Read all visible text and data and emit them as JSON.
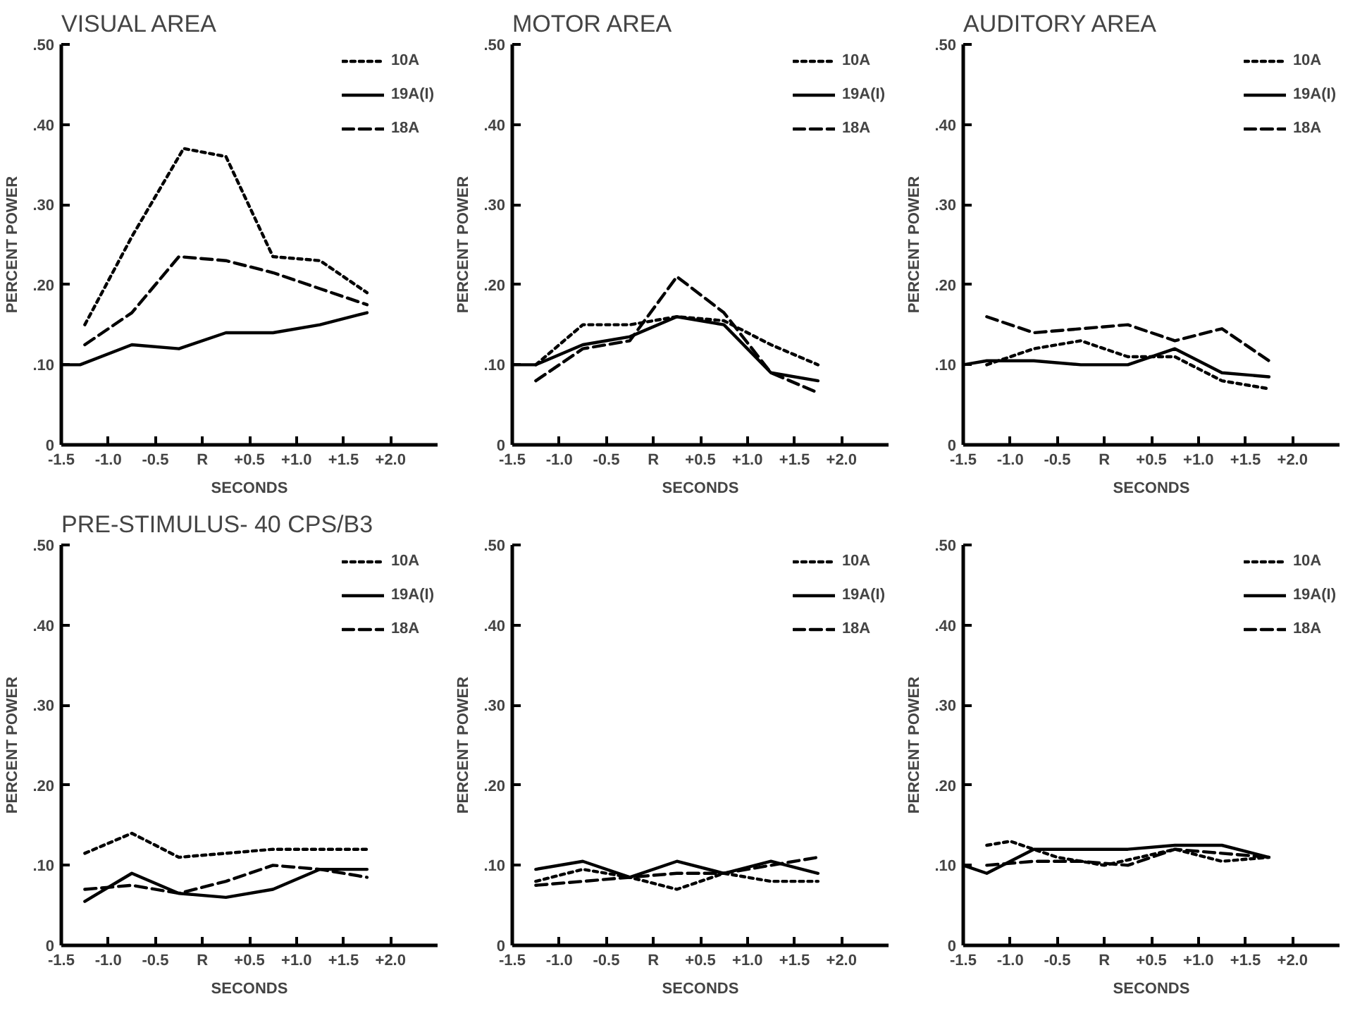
{
  "chart_data": [
    {
      "type": "line",
      "title": "VISUAL AREA",
      "xlabel": "SECONDS",
      "ylabel": "PERCENT POWER",
      "xlim": [
        -1.5,
        2.5
      ],
      "ylim": [
        0,
        0.5
      ],
      "xticks": [
        {
          "value": -1.5,
          "label": "-1.5"
        },
        {
          "value": -1.0,
          "label": "-1.0"
        },
        {
          "value": -0.5,
          "label": "-0.5"
        },
        {
          "value": 0,
          "label": "R"
        },
        {
          "value": 0.5,
          "label": "+0.5"
        },
        {
          "value": 1.0,
          "label": "+1.0"
        },
        {
          "value": 1.5,
          "label": "+1.5"
        },
        {
          "value": 2.0,
          "label": "+2.0"
        }
      ],
      "yticks": [
        {
          "value": 0,
          "label": "0"
        },
        {
          "value": 0.1,
          "label": ".10"
        },
        {
          "value": 0.2,
          "label": ".20"
        },
        {
          "value": 0.3,
          "label": ".30"
        },
        {
          "value": 0.4,
          "label": ".40"
        },
        {
          "value": 0.5,
          "label": ".50"
        }
      ],
      "grid": false,
      "legend": "top right",
      "series": [
        {
          "name": "10A",
          "color": "#000000",
          "line_style": "dotted",
          "x": [
            -1.25,
            -0.75,
            -0.2,
            0.25,
            0.75,
            1.25,
            1.75
          ],
          "values": [
            0.15,
            0.26,
            0.37,
            0.36,
            0.235,
            0.23,
            0.19
          ]
        },
        {
          "name": "19A(I)",
          "color": "#000000",
          "line_style": "solid",
          "x": [
            -1.5,
            -1.3,
            -0.75,
            -0.25,
            0.25,
            0.75,
            1.25,
            1.75
          ],
          "values": [
            0.1,
            0.1,
            0.125,
            0.12,
            0.14,
            0.14,
            0.15,
            0.165
          ]
        },
        {
          "name": "18A",
          "color": "#000000",
          "line_style": "dashed",
          "x": [
            -1.25,
            -0.75,
            -0.25,
            0.25,
            0.75,
            1.25,
            1.75
          ],
          "values": [
            0.125,
            0.165,
            0.235,
            0.23,
            0.215,
            0.195,
            0.175
          ]
        }
      ]
    },
    {
      "type": "line",
      "title": "MOTOR AREA",
      "xlabel": "SECONDS",
      "ylabel": "PERCENT POWER",
      "xlim": [
        -1.5,
        2.5
      ],
      "ylim": [
        0,
        0.5
      ],
      "xticks": [
        {
          "value": -1.5,
          "label": "-1.5"
        },
        {
          "value": -1.0,
          "label": "-1.0"
        },
        {
          "value": -0.5,
          "label": "-0.5"
        },
        {
          "value": 0,
          "label": "R"
        },
        {
          "value": 0.5,
          "label": "+0.5"
        },
        {
          "value": 1.0,
          "label": "+1.0"
        },
        {
          "value": 1.5,
          "label": "+1.5"
        },
        {
          "value": 2.0,
          "label": "+2.0"
        }
      ],
      "yticks": [
        {
          "value": 0,
          "label": "0"
        },
        {
          "value": 0.1,
          "label": ".10"
        },
        {
          "value": 0.2,
          "label": ".20"
        },
        {
          "value": 0.3,
          "label": ".30"
        },
        {
          "value": 0.4,
          "label": ".40"
        },
        {
          "value": 0.5,
          "label": ".50"
        }
      ],
      "grid": false,
      "legend": "top right",
      "series": [
        {
          "name": "10A",
          "color": "#000000",
          "line_style": "dotted",
          "x": [
            -1.25,
            -0.75,
            -0.25,
            0.25,
            0.75,
            1.25,
            1.75
          ],
          "values": [
            0.1,
            0.15,
            0.15,
            0.16,
            0.155,
            0.125,
            0.1
          ]
        },
        {
          "name": "19A(I)",
          "color": "#000000",
          "line_style": "solid",
          "x": [
            -1.5,
            -1.25,
            -0.75,
            -0.25,
            0.25,
            0.75,
            1.25,
            1.75
          ],
          "values": [
            0.1,
            0.1,
            0.125,
            0.135,
            0.16,
            0.15,
            0.09,
            0.08
          ]
        },
        {
          "name": "18A",
          "color": "#000000",
          "line_style": "dashed",
          "x": [
            -1.25,
            -0.75,
            -0.25,
            0.25,
            0.75,
            1.25,
            1.75
          ],
          "values": [
            0.08,
            0.12,
            0.13,
            0.21,
            0.165,
            0.09,
            0.065
          ]
        }
      ]
    },
    {
      "type": "line",
      "title": "AUDITORY AREA",
      "xlabel": "SECONDS",
      "ylabel": "PERCENT POWER",
      "xlim": [
        -1.5,
        2.5
      ],
      "ylim": [
        0,
        0.5
      ],
      "xticks": [
        {
          "value": -1.5,
          "label": "-1.5"
        },
        {
          "value": -1.0,
          "label": "-1.0"
        },
        {
          "value": -0.5,
          "label": "-0.5"
        },
        {
          "value": 0,
          "label": "R"
        },
        {
          "value": 0.5,
          "label": "+0.5"
        },
        {
          "value": 1.0,
          "label": "+1.0"
        },
        {
          "value": 1.5,
          "label": "+1.5"
        },
        {
          "value": 2.0,
          "label": "+2.0"
        }
      ],
      "yticks": [
        {
          "value": 0,
          "label": "0"
        },
        {
          "value": 0.1,
          "label": ".10"
        },
        {
          "value": 0.2,
          "label": ".20"
        },
        {
          "value": 0.3,
          "label": ".30"
        },
        {
          "value": 0.4,
          "label": ".40"
        },
        {
          "value": 0.5,
          "label": ".50"
        }
      ],
      "grid": false,
      "legend": "top right",
      "series": [
        {
          "name": "10A",
          "color": "#000000",
          "line_style": "dotted",
          "x": [
            -1.25,
            -0.75,
            -0.25,
            0.25,
            0.75,
            1.25,
            1.75
          ],
          "values": [
            0.1,
            0.12,
            0.13,
            0.11,
            0.11,
            0.08,
            0.07
          ]
        },
        {
          "name": "19A(I)",
          "color": "#000000",
          "line_style": "solid",
          "x": [
            -1.5,
            -1.25,
            -0.75,
            -0.25,
            0.25,
            0.75,
            1.25,
            1.75
          ],
          "values": [
            0.1,
            0.105,
            0.105,
            0.1,
            0.1,
            0.12,
            0.09,
            0.085
          ]
        },
        {
          "name": "18A",
          "color": "#000000",
          "line_style": "dashed",
          "x": [
            -1.25,
            -0.75,
            -0.25,
            0.25,
            0.75,
            1.25,
            1.75
          ],
          "values": [
            0.16,
            0.14,
            0.145,
            0.15,
            0.13,
            0.145,
            0.105
          ]
        }
      ]
    },
    {
      "type": "line",
      "title": "PRE-STIMULUS- 40 CPS/B3",
      "xlabel": "SECONDS",
      "ylabel": "PERCENT POWER",
      "xlim": [
        -1.5,
        2.5
      ],
      "ylim": [
        0,
        0.5
      ],
      "xticks": [
        {
          "value": -1.5,
          "label": "-1.5"
        },
        {
          "value": -1.0,
          "label": "-1.0"
        },
        {
          "value": -0.5,
          "label": "-0.5"
        },
        {
          "value": 0,
          "label": "R"
        },
        {
          "value": 0.5,
          "label": "+0.5"
        },
        {
          "value": 1.0,
          "label": "+1.0"
        },
        {
          "value": 1.5,
          "label": "+1.5"
        },
        {
          "value": 2.0,
          "label": "+2.0"
        }
      ],
      "yticks": [
        {
          "value": 0,
          "label": "0"
        },
        {
          "value": 0.1,
          "label": ".10"
        },
        {
          "value": 0.2,
          "label": ".20"
        },
        {
          "value": 0.3,
          "label": ".30"
        },
        {
          "value": 0.4,
          "label": ".40"
        },
        {
          "value": 0.5,
          "label": ".50"
        }
      ],
      "grid": false,
      "legend": "top right",
      "series": [
        {
          "name": "10A",
          "color": "#000000",
          "line_style": "dotted",
          "x": [
            -1.25,
            -0.75,
            -0.25,
            0.25,
            0.75,
            1.25,
            1.75
          ],
          "values": [
            0.115,
            0.14,
            0.11,
            0.115,
            0.12,
            0.12,
            0.12
          ]
        },
        {
          "name": "19A(I)",
          "color": "#000000",
          "line_style": "solid",
          "x": [
            -1.25,
            -0.75,
            -0.25,
            0.25,
            0.75,
            1.25,
            1.75
          ],
          "values": [
            0.055,
            0.09,
            0.065,
            0.06,
            0.07,
            0.095,
            0.095
          ]
        },
        {
          "name": "18A",
          "color": "#000000",
          "line_style": "dashed",
          "x": [
            -1.25,
            -0.75,
            -0.25,
            0.25,
            0.75,
            1.25,
            1.75
          ],
          "values": [
            0.07,
            0.075,
            0.065,
            0.08,
            0.1,
            0.095,
            0.085
          ]
        }
      ]
    },
    {
      "type": "line",
      "xlabel": "SECONDS",
      "ylabel": "PERCENT POWER",
      "xlim": [
        -1.5,
        2.5
      ],
      "ylim": [
        0,
        0.5
      ],
      "xticks": [
        {
          "value": -1.5,
          "label": "-1.5"
        },
        {
          "value": -1.0,
          "label": "-1.0"
        },
        {
          "value": -0.5,
          "label": "-0.5"
        },
        {
          "value": 0,
          "label": "R"
        },
        {
          "value": 0.5,
          "label": "+0.5"
        },
        {
          "value": 1.0,
          "label": "+1.0"
        },
        {
          "value": 1.5,
          "label": "+1.5"
        },
        {
          "value": 2.0,
          "label": "+2.0"
        }
      ],
      "yticks": [
        {
          "value": 0,
          "label": "0"
        },
        {
          "value": 0.1,
          "label": ".10"
        },
        {
          "value": 0.2,
          "label": ".20"
        },
        {
          "value": 0.3,
          "label": ".30"
        },
        {
          "value": 0.4,
          "label": ".40"
        },
        {
          "value": 0.5,
          "label": ".50"
        }
      ],
      "grid": false,
      "legend": "top right",
      "series": [
        {
          "name": "10A",
          "color": "#000000",
          "line_style": "dotted",
          "x": [
            -1.25,
            -0.75,
            -0.25,
            0.25,
            0.75,
            1.25,
            1.75
          ],
          "values": [
            0.08,
            0.095,
            0.085,
            0.07,
            0.09,
            0.08,
            0.08
          ]
        },
        {
          "name": "19A(I)",
          "color": "#000000",
          "line_style": "solid",
          "x": [
            -1.25,
            -0.75,
            -0.25,
            0.25,
            0.75,
            1.25,
            1.75
          ],
          "values": [
            0.095,
            0.105,
            0.085,
            0.105,
            0.09,
            0.105,
            0.09
          ]
        },
        {
          "name": "18A",
          "color": "#000000",
          "line_style": "dashed",
          "x": [
            -1.25,
            -0.75,
            -0.25,
            0.25,
            0.75,
            1.25,
            1.75
          ],
          "values": [
            0.075,
            0.08,
            0.085,
            0.09,
            0.09,
            0.1,
            0.11
          ]
        }
      ]
    },
    {
      "type": "line",
      "xlabel": "SECONDS",
      "ylabel": "PERCENT POWER",
      "xlim": [
        -1.5,
        2.5
      ],
      "ylim": [
        0,
        0.5
      ],
      "xticks": [
        {
          "value": -1.5,
          "label": "-1.5"
        },
        {
          "value": -1.0,
          "label": "-1.0"
        },
        {
          "value": -0.5,
          "label": "-0.5"
        },
        {
          "value": 0,
          "label": "R"
        },
        {
          "value": 0.5,
          "label": "+0.5"
        },
        {
          "value": 1.0,
          "label": "+1.0"
        },
        {
          "value": 1.5,
          "label": "+1.5"
        },
        {
          "value": 2.0,
          "label": "+2.0"
        }
      ],
      "yticks": [
        {
          "value": 0,
          "label": "0"
        },
        {
          "value": 0.1,
          "label": ".10"
        },
        {
          "value": 0.2,
          "label": ".20"
        },
        {
          "value": 0.3,
          "label": ".30"
        },
        {
          "value": 0.4,
          "label": ".40"
        },
        {
          "value": 0.5,
          "label": ".50"
        }
      ],
      "grid": false,
      "legend": "top right",
      "series": [
        {
          "name": "10A",
          "color": "#000000",
          "line_style": "dotted",
          "x": [
            -1.25,
            -1.0,
            -0.5,
            0.0,
            0.75,
            1.25,
            1.75
          ],
          "values": [
            0.125,
            0.13,
            0.11,
            0.1,
            0.12,
            0.105,
            0.11
          ]
        },
        {
          "name": "19A(I)",
          "color": "#000000",
          "line_style": "solid",
          "x": [
            -1.5,
            -1.25,
            -0.75,
            -0.25,
            0.25,
            0.75,
            1.25,
            1.75
          ],
          "values": [
            0.1,
            0.09,
            0.12,
            0.12,
            0.12,
            0.125,
            0.125,
            0.11
          ]
        },
        {
          "name": "18A",
          "color": "#000000",
          "line_style": "dashed",
          "x": [
            -1.25,
            -0.75,
            -0.25,
            0.25,
            0.75,
            1.25,
            1.75
          ],
          "values": [
            0.1,
            0.105,
            0.105,
            0.1,
            0.12,
            0.115,
            0.11
          ]
        }
      ]
    }
  ]
}
